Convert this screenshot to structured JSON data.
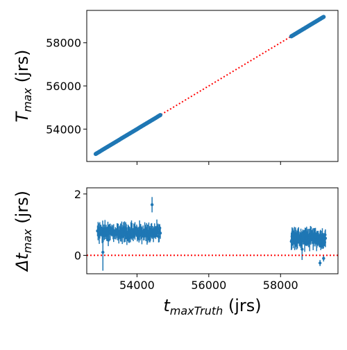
{
  "chart_data": [
    {
      "type": "scatter",
      "panel": "top",
      "ylabel": {
        "main": "T",
        "sub": "max",
        "unit": " (jrs)"
      },
      "xlim": [
        52600,
        59600
      ],
      "ylim": [
        52500,
        59500
      ],
      "yticks": [
        54000,
        56000,
        58000
      ],
      "ytick_labels": [
        "54000",
        "56000",
        "58000"
      ],
      "xticks": [
        54000,
        56000,
        58000
      ],
      "show_xtick_labels": false,
      "reference_line": {
        "style": "dotted",
        "color": "#ff0000",
        "x": [
          52850,
          59200
        ],
        "y": [
          52850,
          59200
        ]
      },
      "series": [
        {
          "color": "#1f77b4",
          "segments": [
            {
              "x_start": 52850,
              "x_end": 54650,
              "offset": 0.0,
              "count": 90
            },
            {
              "x_start": 58300,
              "x_end": 59200,
              "offset": 0.0,
              "count": 60
            }
          ]
        }
      ],
      "grid": false
    },
    {
      "type": "scatter",
      "panel": "bottom",
      "xlabel": {
        "main": "t",
        "sub": "maxTruth",
        "unit": " (jrs)"
      },
      "ylabel": {
        "prefix": "Δt",
        "sub": "max",
        "unit": " (jrs)"
      },
      "xlim": [
        52600,
        59600
      ],
      "ylim": [
        -0.6,
        2.2
      ],
      "yticks": [
        0,
        2
      ],
      "ytick_labels": [
        "0",
        "2"
      ],
      "xticks": [
        54000,
        56000,
        58000
      ],
      "xtick_labels": [
        "54000",
        "56000",
        "58000"
      ],
      "reference_line": {
        "style": "dotted",
        "color": "#ff0000",
        "y": 0
      },
      "series": [
        {
          "color": "#1f77b4",
          "errorbars": true,
          "segments": [
            {
              "x_start": 52900,
              "x_end": 54650,
              "mean": 0.75,
              "spread": 0.15,
              "count": 110
            },
            {
              "x_start": 58300,
              "x_end": 59250,
              "mean": 0.55,
              "spread": 0.15,
              "count": 90
            }
          ],
          "outliers": [
            {
              "x": 53050,
              "y": 0.1,
              "err": 0.6
            },
            {
              "x": 53200,
              "y": 0.5,
              "err": 0.2
            },
            {
              "x": 54420,
              "y": 1.65,
              "err": 0.25
            },
            {
              "x": 59100,
              "y": -0.25,
              "err": 0.1
            },
            {
              "x": 59200,
              "y": -0.1,
              "err": 0.1
            },
            {
              "x": 58600,
              "y": 0.2,
              "err": 0.35
            }
          ]
        }
      ],
      "grid": false
    }
  ]
}
